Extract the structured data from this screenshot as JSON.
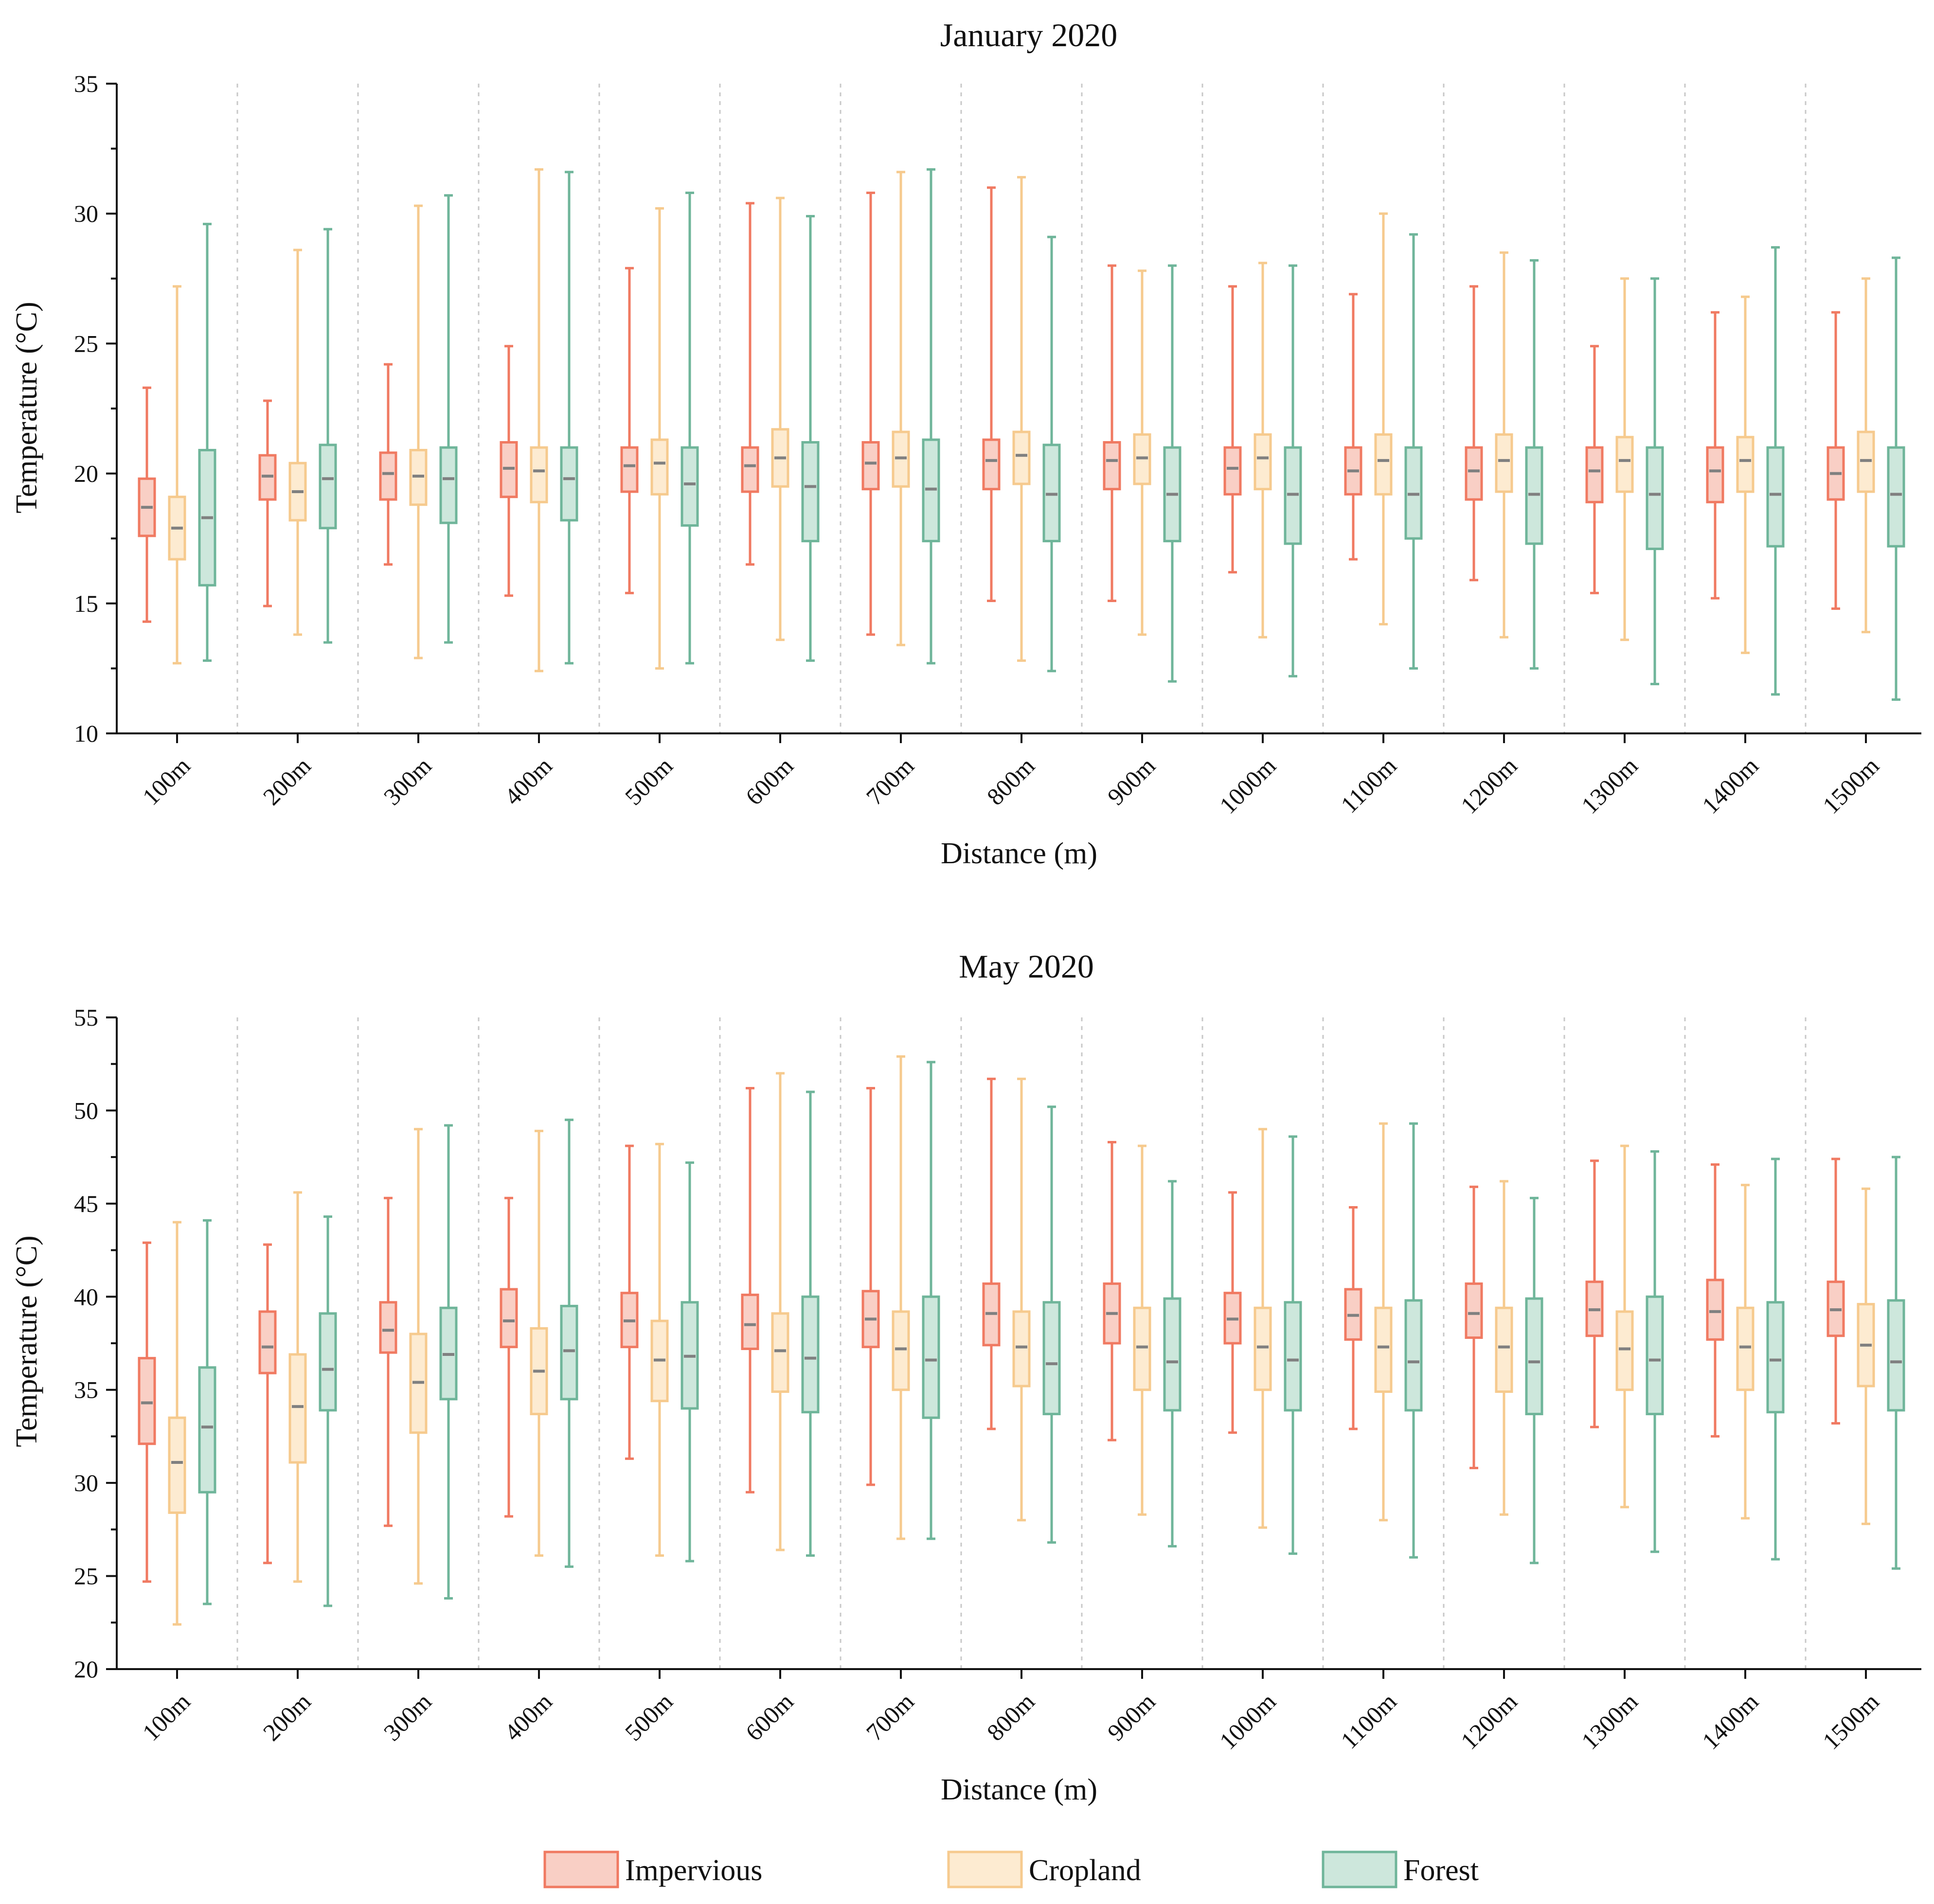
{
  "colors": {
    "Impervious": {
      "fill": "#f9cfc5",
      "stroke": "#f07a62"
    },
    "Cropland": {
      "fill": "#fdebd1",
      "stroke": "#f6ca8e"
    },
    "Forest": {
      "fill": "#cde7dc",
      "stroke": "#6fb59a"
    }
  },
  "legend": {
    "items": [
      "Impervious",
      "Cropland",
      "Forest"
    ]
  },
  "chart_data": [
    {
      "type": "box",
      "title": "January  2020",
      "xlabel": "Distance (m)",
      "ylabel": "Temperature (°C)",
      "ylim": [
        10,
        35
      ],
      "yticks": [
        10,
        15,
        20,
        25,
        30,
        35
      ],
      "categories": [
        "100m",
        "200m",
        "300m",
        "400m",
        "500m",
        "600m",
        "700m",
        "800m",
        "900m",
        "1000m",
        "1100m",
        "1200m",
        "1300m",
        "1400m",
        "1500m"
      ],
      "series": [
        {
          "name": "Impervious",
          "min": [
            14.3,
            14.9,
            16.5,
            15.3,
            15.4,
            16.5,
            13.8,
            15.1,
            15.1,
            16.2,
            16.7,
            15.9,
            15.4,
            15.2,
            14.8
          ],
          "q1": [
            17.6,
            19.0,
            19.0,
            19.1,
            19.3,
            19.3,
            19.4,
            19.4,
            19.4,
            19.2,
            19.2,
            19.0,
            18.9,
            18.9,
            19.0
          ],
          "median": [
            18.7,
            19.9,
            20.0,
            20.2,
            20.3,
            20.3,
            20.4,
            20.5,
            20.5,
            20.2,
            20.1,
            20.1,
            20.1,
            20.1,
            20.0
          ],
          "q3": [
            19.8,
            20.7,
            20.8,
            21.2,
            21.0,
            21.0,
            21.2,
            21.3,
            21.2,
            21.0,
            21.0,
            21.0,
            21.0,
            21.0,
            21.0
          ],
          "max": [
            23.3,
            22.8,
            24.2,
            24.9,
            27.9,
            30.4,
            30.8,
            31.0,
            28.0,
            27.2,
            26.9,
            27.2,
            24.9,
            26.2,
            26.2
          ]
        },
        {
          "name": "Cropland",
          "min": [
            12.7,
            13.8,
            12.9,
            12.4,
            12.5,
            13.6,
            13.4,
            12.8,
            13.8,
            13.7,
            14.2,
            13.7,
            13.6,
            13.1,
            13.9
          ],
          "q1": [
            16.7,
            18.2,
            18.8,
            18.9,
            19.2,
            19.5,
            19.5,
            19.6,
            19.6,
            19.4,
            19.2,
            19.3,
            19.3,
            19.3,
            19.3
          ],
          "median": [
            17.9,
            19.3,
            19.9,
            20.1,
            20.4,
            20.6,
            20.6,
            20.7,
            20.6,
            20.6,
            20.5,
            20.5,
            20.5,
            20.5,
            20.5
          ],
          "q3": [
            19.1,
            20.4,
            20.9,
            21.0,
            21.3,
            21.7,
            21.6,
            21.6,
            21.5,
            21.5,
            21.5,
            21.5,
            21.4,
            21.4,
            21.6
          ],
          "max": [
            27.2,
            28.6,
            30.3,
            31.7,
            30.2,
            30.6,
            31.6,
            31.4,
            27.8,
            28.1,
            30.0,
            28.5,
            27.5,
            26.8,
            27.5
          ]
        },
        {
          "name": "Forest",
          "min": [
            12.8,
            13.5,
            13.5,
            12.7,
            12.7,
            12.8,
            12.7,
            12.4,
            12.0,
            12.2,
            12.5,
            12.5,
            11.9,
            11.5,
            11.3
          ],
          "q1": [
            15.7,
            17.9,
            18.1,
            18.2,
            18.0,
            17.4,
            17.4,
            17.4,
            17.4,
            17.3,
            17.5,
            17.3,
            17.1,
            17.2,
            17.2
          ],
          "median": [
            18.3,
            19.8,
            19.8,
            19.8,
            19.6,
            19.5,
            19.4,
            19.2,
            19.2,
            19.2,
            19.2,
            19.2,
            19.2,
            19.2,
            19.2
          ],
          "q3": [
            20.9,
            21.1,
            21.0,
            21.0,
            21.0,
            21.2,
            21.3,
            21.1,
            21.0,
            21.0,
            21.0,
            21.0,
            21.0,
            21.0,
            21.0
          ],
          "max": [
            29.6,
            29.4,
            30.7,
            31.6,
            30.8,
            29.9,
            31.7,
            29.1,
            28.0,
            28.0,
            29.2,
            28.2,
            27.5,
            28.7,
            28.3
          ]
        }
      ]
    },
    {
      "type": "box",
      "title": "May  2020",
      "xlabel": "Distance (m)",
      "ylabel": "Temperature (°C)",
      "ylim": [
        20,
        55
      ],
      "yticks": [
        20,
        25,
        30,
        35,
        40,
        45,
        50,
        55
      ],
      "categories": [
        "100m",
        "200m",
        "300m",
        "400m",
        "500m",
        "600m",
        "700m",
        "800m",
        "900m",
        "1000m",
        "1100m",
        "1200m",
        "1300m",
        "1400m",
        "1500m"
      ],
      "series": [
        {
          "name": "Impervious",
          "min": [
            24.7,
            25.7,
            27.7,
            28.2,
            31.3,
            29.5,
            29.9,
            32.9,
            32.3,
            32.7,
            32.9,
            30.8,
            33.0,
            32.5,
            33.2
          ],
          "q1": [
            32.1,
            35.9,
            37.0,
            37.3,
            37.3,
            37.2,
            37.3,
            37.4,
            37.5,
            37.5,
            37.7,
            37.8,
            37.9,
            37.7,
            37.9
          ],
          "median": [
            34.3,
            37.3,
            38.2,
            38.7,
            38.7,
            38.5,
            38.8,
            39.1,
            39.1,
            38.8,
            39.0,
            39.1,
            39.3,
            39.2,
            39.3
          ],
          "q3": [
            36.7,
            39.2,
            39.7,
            40.4,
            40.2,
            40.1,
            40.3,
            40.7,
            40.7,
            40.2,
            40.4,
            40.7,
            40.8,
            40.9,
            40.8
          ],
          "max": [
            42.9,
            42.8,
            45.3,
            45.3,
            48.1,
            51.2,
            51.2,
            51.7,
            48.3,
            45.6,
            44.8,
            45.9,
            47.3,
            47.1,
            47.4
          ]
        },
        {
          "name": "Cropland",
          "min": [
            22.4,
            24.7,
            24.6,
            26.1,
            26.1,
            26.4,
            27.0,
            28.0,
            28.3,
            27.6,
            28.0,
            28.3,
            28.7,
            28.1,
            27.8
          ],
          "q1": [
            28.4,
            31.1,
            32.7,
            33.7,
            34.4,
            34.9,
            35.0,
            35.2,
            35.0,
            35.0,
            34.9,
            34.9,
            35.0,
            35.0,
            35.2
          ],
          "median": [
            31.1,
            34.1,
            35.4,
            36.0,
            36.6,
            37.1,
            37.2,
            37.3,
            37.3,
            37.3,
            37.3,
            37.3,
            37.2,
            37.3,
            37.4
          ],
          "q3": [
            33.5,
            36.9,
            38.0,
            38.3,
            38.7,
            39.1,
            39.2,
            39.2,
            39.4,
            39.4,
            39.4,
            39.4,
            39.2,
            39.4,
            39.6
          ],
          "max": [
            44.0,
            45.6,
            49.0,
            48.9,
            48.2,
            52.0,
            52.9,
            51.7,
            48.1,
            49.0,
            49.3,
            46.2,
            48.1,
            46.0,
            45.8
          ]
        },
        {
          "name": "Forest",
          "min": [
            23.5,
            23.4,
            23.8,
            25.5,
            25.8,
            26.1,
            27.0,
            26.8,
            26.6,
            26.2,
            26.0,
            25.7,
            26.3,
            25.9,
            25.4
          ],
          "q1": [
            29.5,
            33.9,
            34.5,
            34.5,
            34.0,
            33.8,
            33.5,
            33.7,
            33.9,
            33.9,
            33.9,
            33.7,
            33.7,
            33.8,
            33.9
          ],
          "median": [
            33.0,
            36.1,
            36.9,
            37.1,
            36.8,
            36.7,
            36.6,
            36.4,
            36.5,
            36.6,
            36.5,
            36.5,
            36.6,
            36.6,
            36.5
          ],
          "q3": [
            36.2,
            39.1,
            39.4,
            39.5,
            39.7,
            40.0,
            40.0,
            39.7,
            39.9,
            39.7,
            39.8,
            39.9,
            40.0,
            39.7,
            39.8
          ],
          "max": [
            44.1,
            44.3,
            49.2,
            49.5,
            47.2,
            51.0,
            52.6,
            50.2,
            46.2,
            48.6,
            49.3,
            45.3,
            47.8,
            47.4,
            47.5
          ]
        }
      ]
    }
  ]
}
